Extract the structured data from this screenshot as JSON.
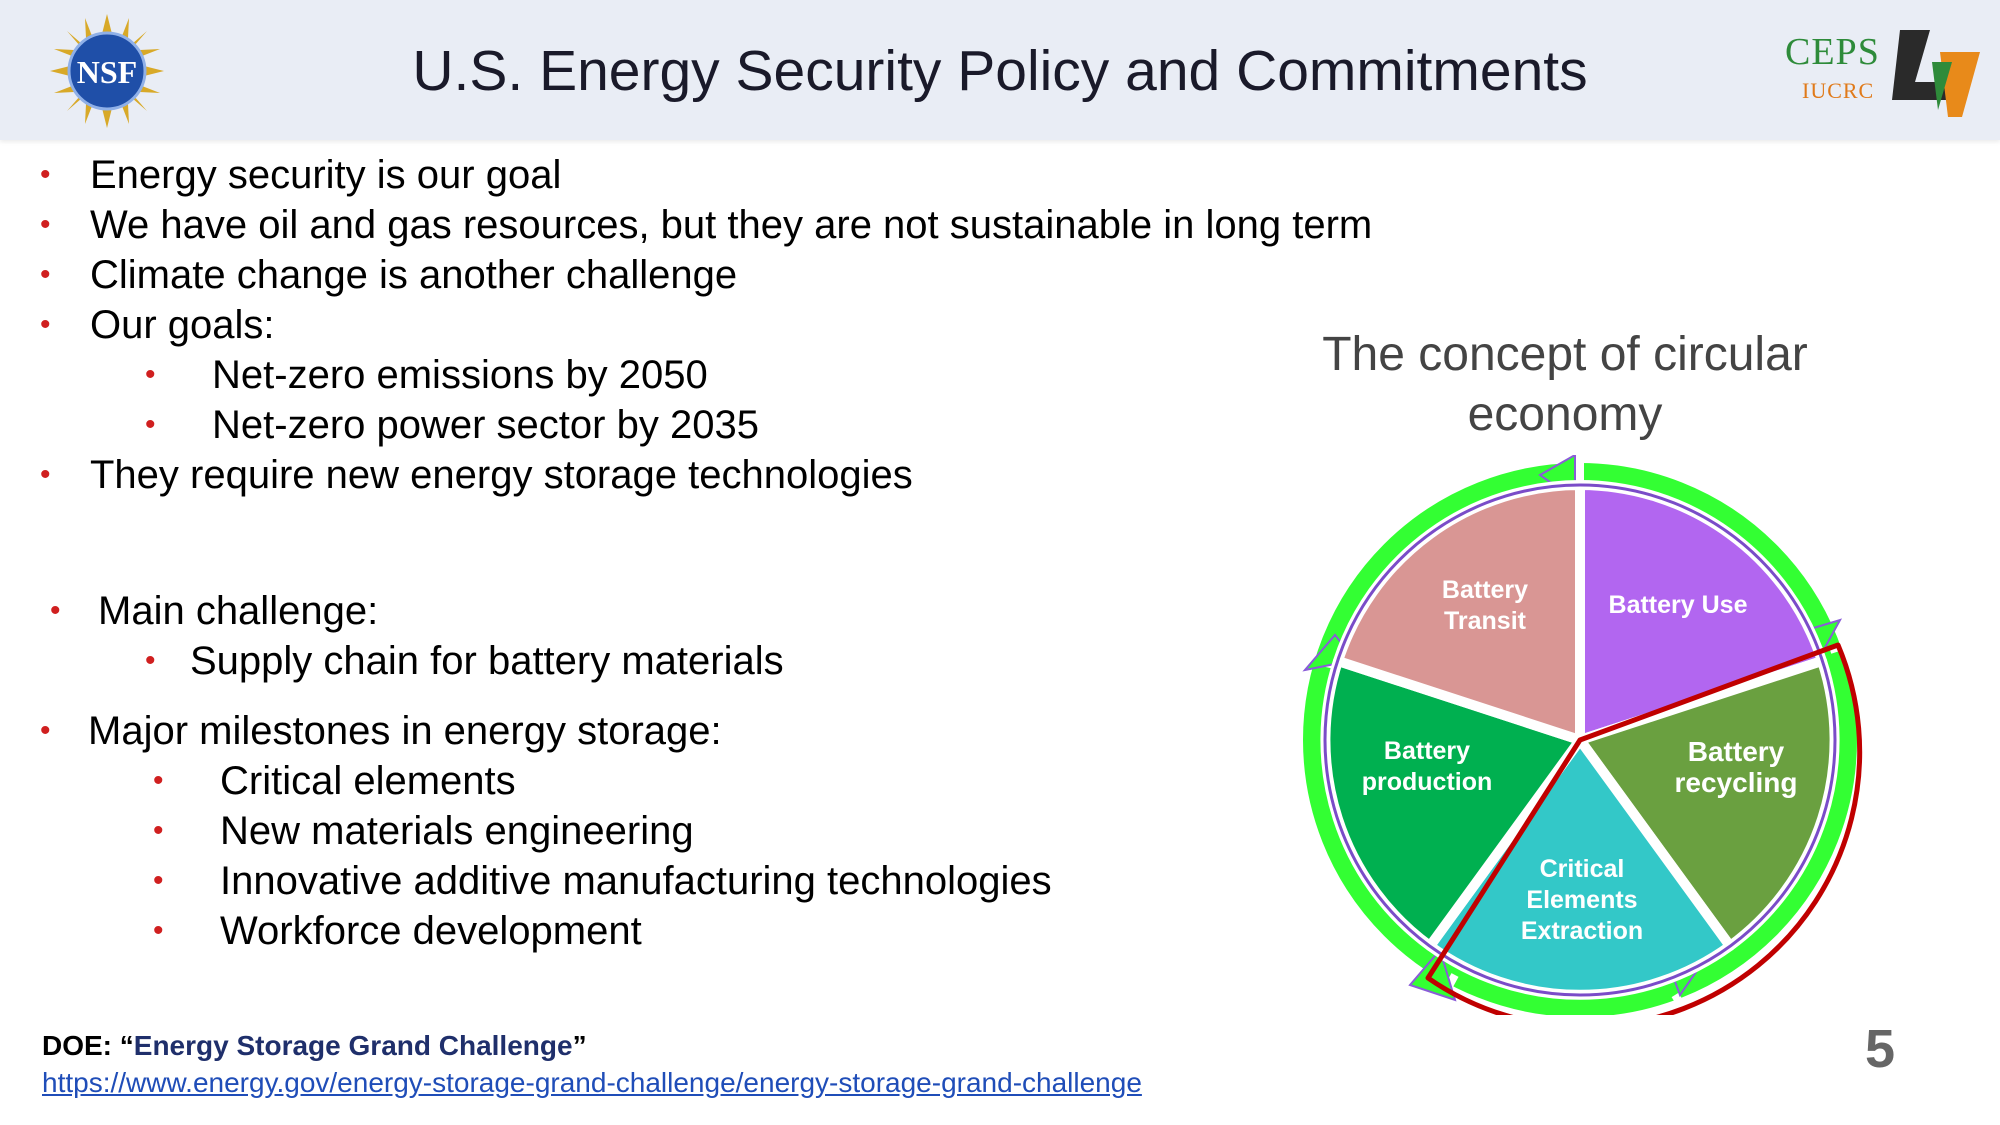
{
  "header": {
    "title": "U.S. Energy Security Policy and Commitments",
    "nsf_logo_text": "NSF",
    "ceps_logo_text": "CEPS",
    "iucrc_logo_text": "IUCRC"
  },
  "bullets_top": [
    {
      "text": "Energy security is our goal",
      "level": 1
    },
    {
      "text": "We have oil and gas resources, but they are not sustainable in long term",
      "level": 1
    },
    {
      "text": "Climate change is another challenge",
      "level": 1
    },
    {
      "text": "Our goals:",
      "level": 1
    },
    {
      "text": "Net-zero emissions by 2050",
      "level": 2
    },
    {
      "text": "Net-zero power sector by 2035",
      "level": 2
    },
    {
      "text": "They require new energy storage technologies",
      "level": 1
    }
  ],
  "challenge": {
    "heading": "Main challenge:",
    "item": "Supply chain for battery materials"
  },
  "milestones": {
    "heading": "Major milestones in energy storage:",
    "items": [
      "Critical elements",
      "New materials engineering",
      "Innovative additive manufacturing technologies",
      "Workforce development"
    ]
  },
  "diagram": {
    "title": "The concept of circular economy",
    "segments": {
      "transit": [
        "Battery",
        "Transit"
      ],
      "use": [
        "Battery Use"
      ],
      "recycling": [
        "Battery",
        "recycling"
      ],
      "extraction": [
        "Critical",
        "Elements",
        "Extraction"
      ],
      "production": [
        "Battery",
        "production"
      ]
    },
    "colors": {
      "transit": "#d99694",
      "use": "#b266f0",
      "recycling": "#6aa040",
      "extraction": "#33c8c8",
      "production": "#00b050",
      "arrow": "#33ff33",
      "highlight": "#c00000"
    }
  },
  "footer": {
    "label_prefix": "DOE: “",
    "label_emph": "Energy Storage Grand Challenge",
    "label_suffix": "”",
    "link": "https://www.energy.gov/energy-storage-grand-challenge/energy-storage-grand-challenge"
  },
  "page_number": "5"
}
